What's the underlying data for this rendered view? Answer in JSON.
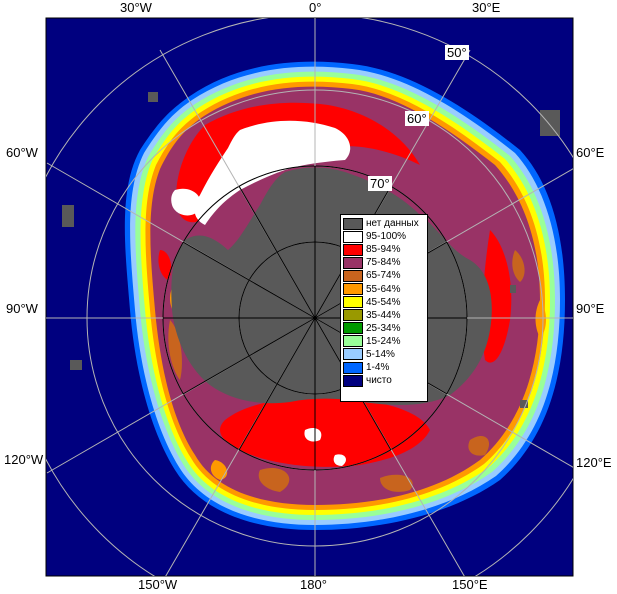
{
  "map": {
    "longitude_labels": {
      "top": [
        "30°W",
        "0°",
        "30°E"
      ],
      "left": [
        "60°W",
        "90°W",
        "120°W"
      ],
      "right": [
        "60°E",
        "90°E",
        "120°E"
      ],
      "bottom": [
        "150°W",
        "180°",
        "150°E"
      ]
    },
    "latitude_labels": [
      "50°",
      "60°",
      "70°"
    ],
    "colors": {
      "ocean": "#00007f",
      "land_nodata": "#595959",
      "grid": "#b4b4b4",
      "ice_95_100": "#ffffff",
      "ice_85_94": "#ff0000",
      "ice_75_84": "#993366",
      "ice_65_74": "#c8641e",
      "ice_55_64": "#ff9900",
      "ice_45_54": "#ffff00",
      "ice_35_44": "#999900",
      "ice_25_34": "#009900",
      "ice_15_24": "#99ff99",
      "ice_5_14": "#99ccff",
      "ice_1_4": "#0066ff",
      "ice_clear": "#00007f"
    }
  },
  "legend": {
    "items": [
      {
        "label": "нет данных",
        "color": "#595959"
      },
      {
        "label": "95-100%",
        "color": "#ffffff"
      },
      {
        "label": "85-94%",
        "color": "#ff0000"
      },
      {
        "label": "75-84%",
        "color": "#993366"
      },
      {
        "label": "65-74%",
        "color": "#c8641e"
      },
      {
        "label": "55-64%",
        "color": "#ff9900"
      },
      {
        "label": "45-54%",
        "color": "#ffff00"
      },
      {
        "label": "35-44%",
        "color": "#999900"
      },
      {
        "label": "25-34%",
        "color": "#009900"
      },
      {
        "label": "15-24%",
        "color": "#99ff99"
      },
      {
        "label": "5-14%",
        "color": "#99ccff"
      },
      {
        "label": "1-4%",
        "color": "#0066ff"
      },
      {
        "label": "чисто",
        "color": "#00007f"
      }
    ]
  }
}
